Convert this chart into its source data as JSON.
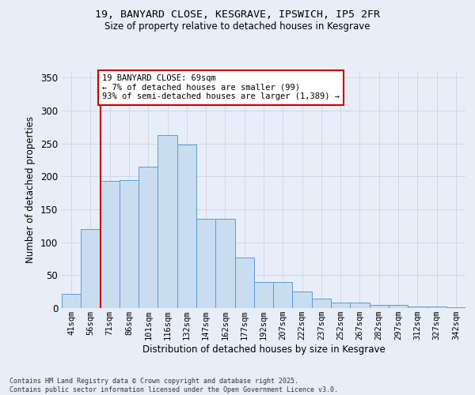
{
  "title1": "19, BANYARD CLOSE, KESGRAVE, IPSWICH, IP5 2FR",
  "title2": "Size of property relative to detached houses in Kesgrave",
  "xlabel": "Distribution of detached houses by size in Kesgrave",
  "ylabel": "Number of detached properties",
  "categories": [
    "41sqm",
    "56sqm",
    "71sqm",
    "86sqm",
    "101sqm",
    "116sqm",
    "132sqm",
    "147sqm",
    "162sqm",
    "177sqm",
    "192sqm",
    "207sqm",
    "222sqm",
    "237sqm",
    "252sqm",
    "267sqm",
    "282sqm",
    "297sqm",
    "312sqm",
    "327sqm",
    "342sqm"
  ],
  "bar_values": [
    22,
    120,
    193,
    195,
    215,
    263,
    248,
    136,
    136,
    77,
    40,
    40,
    25,
    14,
    8,
    8,
    5,
    5,
    3,
    2,
    1
  ],
  "bar_color": "#c9ddf0",
  "bar_edge_color": "#5b9bd5",
  "vline_color": "#cc0000",
  "vline_position": 1.5,
  "annotation_text": "19 BANYARD CLOSE: 69sqm\n← 7% of detached houses are smaller (99)\n93% of semi-detached houses are larger (1,389) →",
  "footer": "Contains HM Land Registry data © Crown copyright and database right 2025.\nContains public sector information licensed under the Open Government Licence v3.0.",
  "ylim": [
    0,
    360
  ],
  "yticks": [
    0,
    50,
    100,
    150,
    200,
    250,
    300,
    350
  ],
  "grid_color": "#ccd8e8",
  "background_color": "#e8eef8"
}
